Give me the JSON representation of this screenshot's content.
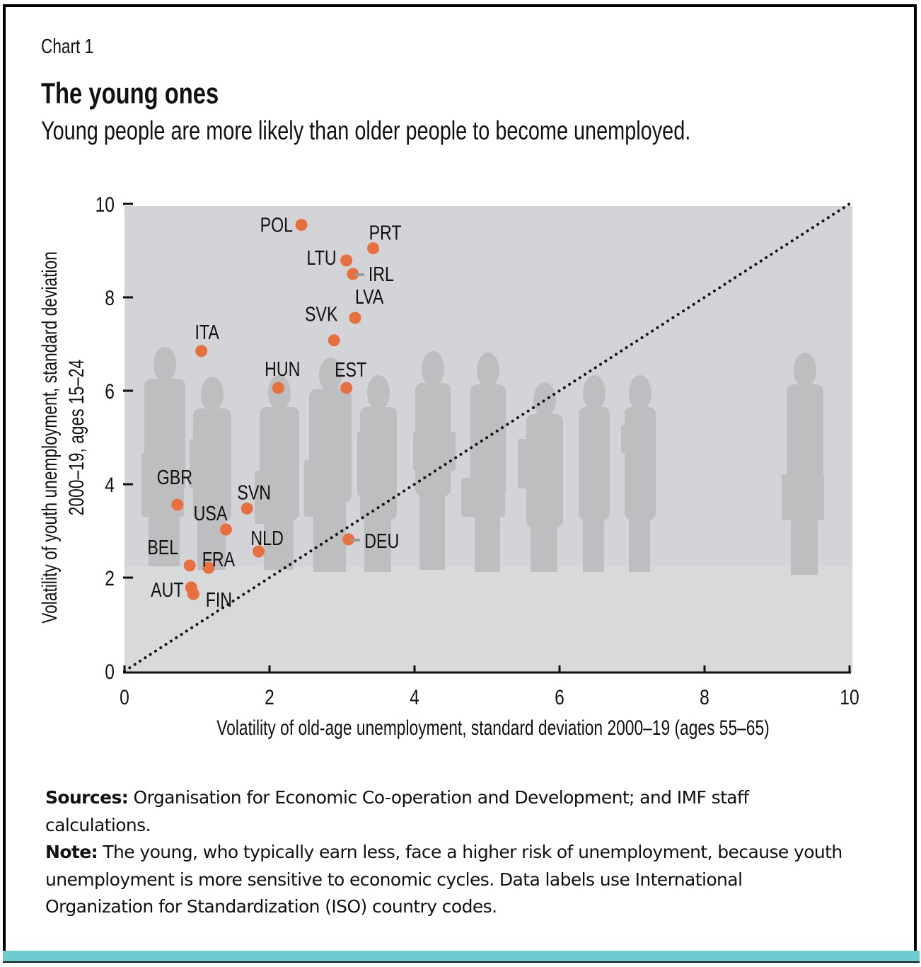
{
  "header": {
    "chart_number": "Chart 1",
    "title": "The young ones",
    "subtitle": "Young people are more likely than older people to become unemployed."
  },
  "notes": {
    "sources_label": "Sources:",
    "sources_text": " Organisation for Economic Co-operation and Development; and IMF staff calculations.",
    "note_label": "Note:",
    "note_text": " The young, who typically earn less, face a higher risk of unemployment, because youth unemployment is more sensitive to economic cycles. Data labels use International Organization for Standardization (ISO) country codes."
  },
  "colors": {
    "point": "#e8703f",
    "plot_bg": "#d3d4d7",
    "silhouette": "#bdbec0",
    "accent_bar": "#6ecbd0",
    "leader_line": "#9a9a9a"
  },
  "chart_data": {
    "type": "scatter",
    "title": "The young ones",
    "subtitle": "Young people are more likely than older people to become unemployed.",
    "xlabel": "Volatility of old-age unemployment, standard deviation 2000–19 (ages 55–65)",
    "ylabel_lines": [
      "Volatility of youth unemployment, standard deviation",
      "2000–19, ages 15–24"
    ],
    "xlim": [
      0,
      10
    ],
    "ylim": [
      0,
      10
    ],
    "xticks": [
      0,
      2,
      4,
      6,
      8,
      10
    ],
    "yticks": [
      0,
      2,
      4,
      6,
      8,
      10
    ],
    "grid": false,
    "reference_line": {
      "style": "dotted",
      "from": [
        0,
        0
      ],
      "to": [
        10,
        10
      ],
      "label": "45-degree line"
    },
    "points": [
      {
        "label": "POL",
        "x": 2.44,
        "y": 9.55,
        "label_pos": "left"
      },
      {
        "label": "PRT",
        "x": 3.43,
        "y": 9.05,
        "label_pos": "above-right"
      },
      {
        "label": "LTU",
        "x": 3.06,
        "y": 8.79,
        "label_pos": "left"
      },
      {
        "label": "IRL",
        "x": 3.15,
        "y": 8.5,
        "label_pos": "right-leader"
      },
      {
        "label": "LVA",
        "x": 3.18,
        "y": 7.56,
        "label_pos": "above-right"
      },
      {
        "label": "SVK",
        "x": 2.89,
        "y": 7.08,
        "label_pos": "above-left"
      },
      {
        "label": "ITA",
        "x": 1.06,
        "y": 6.85,
        "label_pos": "above"
      },
      {
        "label": "HUN",
        "x": 2.12,
        "y": 6.06,
        "label_pos": "above"
      },
      {
        "label": "EST",
        "x": 3.06,
        "y": 6.06,
        "label_pos": "above"
      },
      {
        "label": "GBR",
        "x": 0.73,
        "y": 3.56,
        "label_pos": "above"
      },
      {
        "label": "SVN",
        "x": 1.69,
        "y": 3.48,
        "label_pos": "above"
      },
      {
        "label": "USA",
        "x": 1.4,
        "y": 3.03,
        "label_pos": "above-left"
      },
      {
        "label": "NLD",
        "x": 1.85,
        "y": 2.56,
        "label_pos": "above"
      },
      {
        "label": "DEU",
        "x": 3.09,
        "y": 2.82,
        "label_pos": "right-leader"
      },
      {
        "label": "BEL",
        "x": 0.9,
        "y": 2.26,
        "label_pos": "above-left"
      },
      {
        "label": "FRA",
        "x": 1.16,
        "y": 2.21,
        "label_pos": "above-right"
      },
      {
        "label": "AUT",
        "x": 0.92,
        "y": 1.79,
        "label_pos": "left"
      },
      {
        "label": "FIN",
        "x": 0.95,
        "y": 1.65,
        "label_pos": "below-right"
      }
    ]
  }
}
